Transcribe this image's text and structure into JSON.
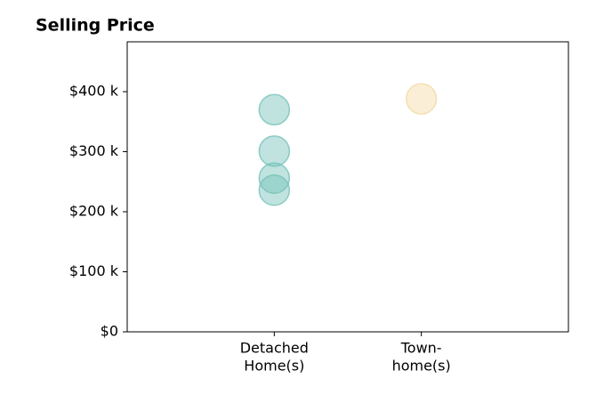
{
  "chart_data": {
    "type": "strip",
    "title": "Selling Price",
    "categories": [
      [
        "Detached",
        "Home(s)"
      ],
      [
        "Town-",
        "home(s)"
      ]
    ],
    "series": [
      {
        "color": "#74c2b9",
        "values": [
          370000,
          301000,
          256000,
          236000
        ]
      },
      {
        "color": "#f3d9a4",
        "values": [
          388000
        ]
      }
    ],
    "ylim": [
      0,
      483000
    ],
    "yticks": [
      {
        "value": 0,
        "label": "$0"
      },
      {
        "value": 100000,
        "label": "$100 k"
      },
      {
        "value": 200000,
        "label": "$200 k"
      },
      {
        "value": 300000,
        "label": "$300 k"
      },
      {
        "value": 400000,
        "label": "$400 k"
      }
    ]
  }
}
